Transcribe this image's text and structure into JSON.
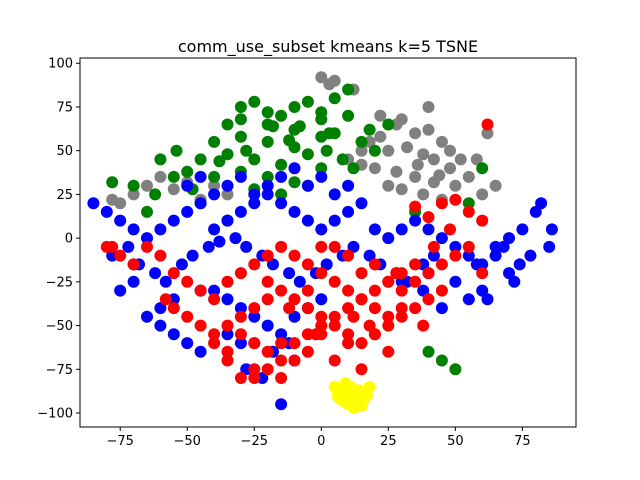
{
  "chart_data": {
    "type": "scatter",
    "title": "comm_use_subset kmeans k=5 TSNE",
    "xlabel": "",
    "ylabel": "",
    "xlim": [
      -90,
      95
    ],
    "ylim": [
      -108,
      103
    ],
    "xticks": [
      -75,
      -50,
      -25,
      0,
      25,
      50,
      75
    ],
    "yticks": [
      -100,
      -75,
      -50,
      -25,
      0,
      25,
      50,
      75,
      100
    ],
    "grid": false,
    "legend": "none",
    "series": [
      {
        "color": "#808080",
        "x": [
          22,
          28,
          35,
          40,
          45,
          18,
          25,
          32,
          38,
          42,
          48,
          52,
          15,
          20,
          28,
          35,
          42,
          50,
          55,
          30,
          38,
          45,
          25,
          60,
          62,
          -75,
          -70,
          -65,
          -60,
          -55,
          -50,
          -45,
          -40,
          -35,
          10,
          15,
          22,
          30,
          5,
          12,
          40,
          48,
          -78,
          65,
          58,
          0,
          3,
          36,
          44
        ],
        "y": [
          70,
          65,
          60,
          62,
          55,
          55,
          50,
          52,
          48,
          45,
          40,
          45,
          42,
          40,
          38,
          35,
          32,
          30,
          35,
          28,
          25,
          22,
          30,
          25,
          60,
          20,
          25,
          30,
          35,
          28,
          32,
          22,
          30,
          25,
          45,
          50,
          58,
          68,
          90,
          85,
          75,
          50,
          22,
          30,
          45,
          92,
          88,
          42,
          36
        ]
      },
      {
        "color": "#008000",
        "x": [
          -30,
          -25,
          -20,
          -15,
          -10,
          -5,
          0,
          5,
          10,
          -35,
          -30,
          -20,
          -10,
          0,
          10,
          -40,
          -30,
          -20,
          -10,
          0,
          5,
          -45,
          -35,
          -25,
          -15,
          -5,
          15,
          -50,
          -40,
          -30,
          -20,
          -10,
          0,
          -60,
          -55,
          -62,
          -70,
          -78,
          20,
          25,
          8,
          12,
          -25,
          -5,
          -15,
          35,
          55,
          60,
          40,
          -65,
          -45,
          -35,
          3,
          -12,
          -28,
          -8,
          2,
          18,
          -18,
          -38,
          -48,
          -54,
          45,
          50
        ],
        "y": [
          75,
          78,
          72,
          70,
          75,
          78,
          72,
          80,
          85,
          65,
          68,
          65,
          62,
          68,
          70,
          55,
          58,
          55,
          52,
          58,
          60,
          45,
          48,
          45,
          42,
          48,
          55,
          38,
          35,
          38,
          35,
          32,
          40,
          45,
          35,
          25,
          30,
          32,
          50,
          65,
          45,
          40,
          28,
          30,
          25,
          15,
          20,
          40,
          -65,
          15,
          20,
          10,
          60,
          56,
          50,
          64,
          50,
          62,
          64,
          44,
          28,
          50,
          -70,
          -75
        ]
      },
      {
        "color": "#0000ff",
        "x": [
          -85,
          -80,
          -75,
          -70,
          -65,
          -60,
          -55,
          -50,
          -45,
          -40,
          -35,
          -30,
          -25,
          -20,
          -15,
          -10,
          -5,
          0,
          5,
          10,
          15,
          20,
          25,
          30,
          35,
          40,
          45,
          50,
          55,
          60,
          65,
          70,
          75,
          80,
          85,
          -78,
          -72,
          -68,
          -62,
          -58,
          -52,
          -48,
          -42,
          -38,
          -32,
          -28,
          -22,
          -18,
          -12,
          -8,
          -2,
          2,
          8,
          12,
          18,
          22,
          28,
          32,
          38,
          42,
          -50,
          -45,
          -40,
          -35,
          -30,
          -25,
          -20,
          -15,
          -10,
          -5,
          0,
          5,
          10,
          -40,
          -35,
          -30,
          -25,
          -20,
          -15,
          -10,
          -5,
          0,
          -60,
          -55,
          -50,
          -45,
          -30,
          -10,
          40,
          50,
          60,
          70,
          78,
          82,
          86,
          72,
          65,
          55,
          -15,
          -22,
          -28,
          -60,
          -65,
          -55,
          -45,
          -35,
          -25,
          -18,
          -12,
          45,
          38,
          30,
          58,
          68,
          74,
          62,
          -70,
          -75
        ],
        "y": [
          20,
          15,
          10,
          5,
          0,
          5,
          10,
          15,
          20,
          5,
          10,
          15,
          20,
          25,
          20,
          15,
          10,
          5,
          10,
          15,
          20,
          5,
          0,
          5,
          10,
          5,
          0,
          -5,
          -10,
          -15,
          -5,
          0,
          5,
          15,
          -5,
          -10,
          -5,
          -15,
          -20,
          -25,
          -15,
          -10,
          -5,
          -2,
          0,
          -5,
          -10,
          -15,
          -20,
          -25,
          -20,
          -15,
          -10,
          -5,
          -10,
          -15,
          -20,
          -25,
          -15,
          -10,
          30,
          35,
          25,
          30,
          35,
          25,
          30,
          35,
          40,
          30,
          35,
          25,
          30,
          -30,
          -35,
          -40,
          -45,
          -50,
          -55,
          -45,
          -40,
          -35,
          -50,
          -55,
          -60,
          -65,
          -60,
          -70,
          -20,
          -25,
          -30,
          -20,
          -10,
          20,
          5,
          -25,
          -10,
          -35,
          -95,
          -80,
          -75,
          -40,
          -45,
          -35,
          -30,
          -55,
          -60,
          -65,
          -60,
          -40,
          -30,
          -25,
          -15,
          -5,
          -15,
          -35,
          -25,
          -30
        ]
      },
      {
        "color": "#ff0000",
        "x": [
          -80,
          -75,
          -70,
          -65,
          -60,
          -55,
          -50,
          -45,
          -40,
          -35,
          -30,
          -25,
          -20,
          -15,
          -10,
          -5,
          0,
          5,
          10,
          15,
          20,
          25,
          30,
          35,
          40,
          45,
          50,
          55,
          60,
          -55,
          -50,
          -45,
          -40,
          -35,
          -30,
          -25,
          -20,
          -15,
          -10,
          -5,
          0,
          5,
          10,
          15,
          20,
          25,
          30,
          35,
          40,
          45,
          -40,
          -35,
          -30,
          -25,
          -20,
          -15,
          -10,
          -5,
          0,
          5,
          10,
          15,
          20,
          25,
          30,
          -35,
          -25,
          -15,
          -5,
          5,
          15,
          25,
          -30,
          -20,
          -10,
          0,
          10,
          20,
          -25,
          -15,
          45,
          55,
          60,
          35,
          40,
          50,
          62,
          -78,
          -70,
          -58,
          20,
          28,
          42,
          48,
          10,
          0,
          -20,
          -5,
          5,
          15,
          25,
          35,
          12,
          18,
          -12,
          -2,
          30,
          38
        ],
        "y": [
          -5,
          -10,
          -15,
          -5,
          -10,
          -20,
          -25,
          -30,
          -35,
          -25,
          -20,
          -15,
          -10,
          -5,
          -10,
          -15,
          -20,
          -25,
          -30,
          -35,
          -40,
          -45,
          -30,
          -25,
          -20,
          -15,
          -10,
          -5,
          -20,
          -40,
          -45,
          -50,
          -55,
          -50,
          -45,
          -40,
          -35,
          -30,
          -35,
          -40,
          -45,
          -50,
          -55,
          -60,
          -55,
          -50,
          -45,
          -40,
          -35,
          -30,
          -60,
          -65,
          -55,
          -60,
          -65,
          -70,
          -60,
          -55,
          -50,
          -45,
          -40,
          -35,
          -30,
          -25,
          -20,
          -70,
          -75,
          -80,
          -65,
          -70,
          -75,
          -65,
          -80,
          -75,
          -70,
          -55,
          -60,
          -55,
          -80,
          -60,
          20,
          15,
          10,
          18,
          12,
          22,
          65,
          -5,
          -15,
          -35,
          -15,
          -20,
          -5,
          5,
          -10,
          -5,
          -25,
          -30,
          -5,
          -20,
          -25,
          -15,
          -45,
          -50,
          -40,
          -55,
          -40,
          -50
        ]
      },
      {
        "color": "#ffff00",
        "x": [
          5,
          8,
          10,
          12,
          15,
          18,
          7,
          10,
          13,
          16,
          9,
          11,
          14,
          6,
          12,
          17,
          8,
          15,
          10,
          13
        ],
        "y": [
          -85,
          -88,
          -90,
          -92,
          -88,
          -85,
          -92,
          -95,
          -95,
          -92,
          -83,
          -85,
          -87,
          -90,
          -97,
          -90,
          -93,
          -96,
          -88,
          -91
        ]
      }
    ]
  }
}
